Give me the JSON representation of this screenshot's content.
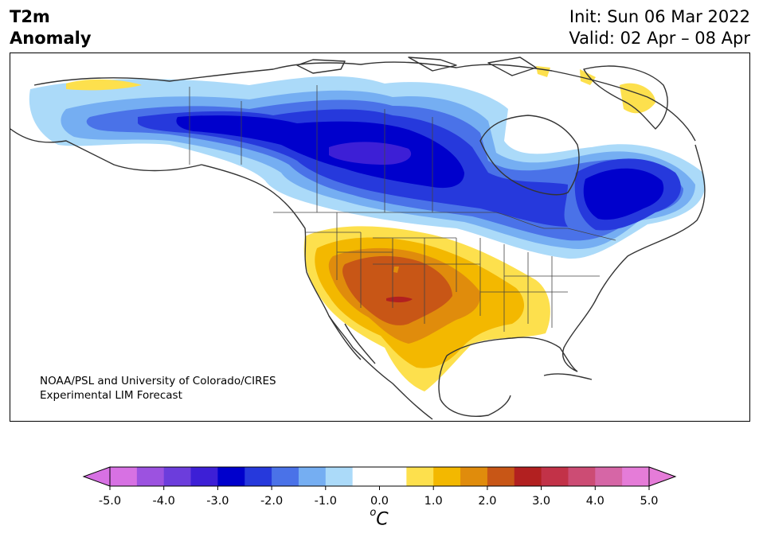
{
  "title": {
    "line1": "T2m",
    "line2": "Anomaly"
  },
  "init": "Init: Sun 06 Mar 2022",
  "valid": "Valid: 02 Apr – 08 Apr",
  "credit": {
    "line1": "NOAA/PSL and University of Colorado/CIRES",
    "line2": "Experimental LIM Forecast"
  },
  "colorbar": {
    "ticks": [
      "-5.0",
      "-4.0",
      "-3.0",
      "-2.0",
      "-1.0",
      "0.0",
      "1.0",
      "2.0",
      "3.0",
      "4.0",
      "5.0"
    ],
    "colors": [
      "#d771e3",
      "#9c52e0",
      "#6c3ddc",
      "#3d1fd6",
      "#0000cc",
      "#2639dc",
      "#4a72e8",
      "#75aef2",
      "#abdaf9",
      "#ffffff",
      "#ffffff",
      "#fde04d",
      "#f3b800",
      "#e08c0c",
      "#c85616",
      "#b22020",
      "#c23248",
      "#cc4c74",
      "#d666a6",
      "#e57cd8"
    ],
    "extend_low_color": "#d771e3",
    "extend_high_color": "#e57cd8",
    "unit": "C",
    "unit_sup": "o"
  }
}
